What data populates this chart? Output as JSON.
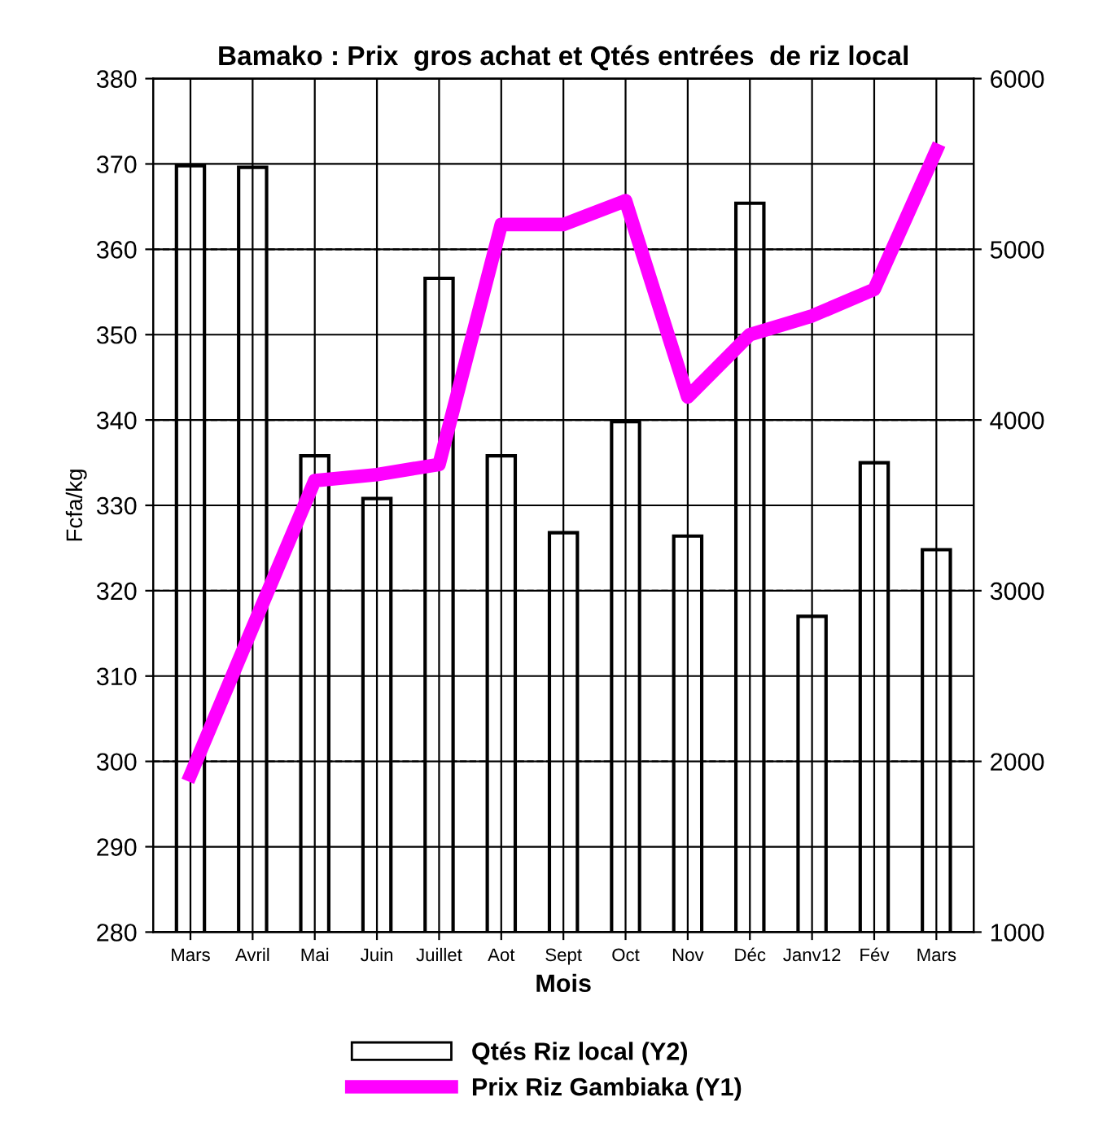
{
  "chart_data": {
    "type": "bar",
    "title": "Bamako : Prix  gros achat et Qtés entrées  de riz local",
    "xlabel": "Mois",
    "ylabel": "Fcfa/kg",
    "categories": [
      "Mars",
      "Avril",
      "Mai",
      "Juin",
      "Juillet",
      "Aot",
      "Sept",
      "Oct",
      "Nov",
      "Déc",
      "Janv12",
      "Fév",
      "Mars"
    ],
    "series": [
      {
        "name": "Qtés Riz local (Y2)",
        "axis": "y2",
        "color": "#ffffff",
        "values": [
          5490,
          5480,
          3790,
          3540,
          4830,
          3790,
          3340,
          3990,
          3320,
          5270,
          2850,
          3750,
          3240
        ]
      },
      {
        "name": "Prix Riz Gambiaka (Y1)",
        "type": "line",
        "color": "#ff00ff",
        "values": [
          298.4,
          315.7,
          332.9,
          333.6,
          334.8,
          362.9,
          362.9,
          365.7,
          342.7,
          350,
          352.2,
          355.3,
          371.6
        ]
      }
    ],
    "ylim": [
      280,
      380
    ],
    "yticks": [
      280,
      290,
      300,
      310,
      320,
      330,
      340,
      350,
      360,
      370,
      380
    ],
    "y2lim": [
      1000,
      6000
    ],
    "y2ticks": [
      1000,
      2000,
      3000,
      4000,
      5000,
      6000
    ],
    "grid": true,
    "legend": "bottom"
  }
}
